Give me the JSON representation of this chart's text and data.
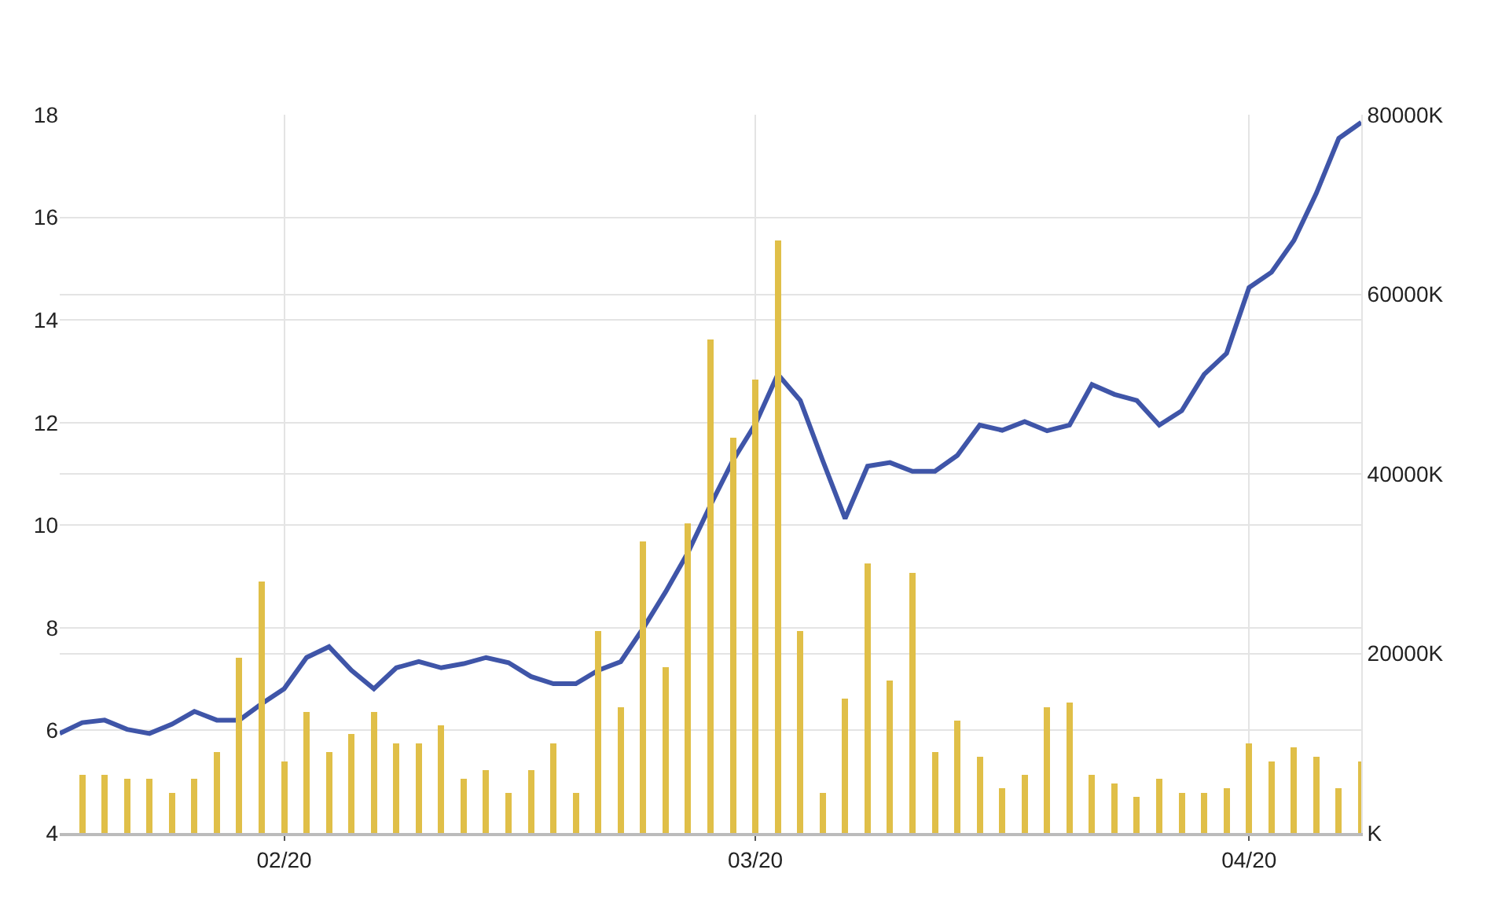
{
  "chart_data": {
    "type": "line",
    "categories": [
      null,
      null,
      null,
      null,
      null,
      null,
      null,
      null,
      null,
      null,
      "02/20",
      null,
      null,
      null,
      null,
      null,
      null,
      null,
      null,
      null,
      null,
      null,
      null,
      null,
      null,
      null,
      null,
      null,
      null,
      null,
      null,
      "03/20",
      null,
      null,
      null,
      null,
      null,
      null,
      null,
      null,
      null,
      null,
      null,
      null,
      null,
      null,
      null,
      null,
      null,
      null,
      null,
      null,
      null,
      "04/20",
      null,
      null,
      null,
      null,
      null
    ],
    "series": [
      {
        "type": "bar",
        "axis": "y2",
        "color": "#e0bf48",
        "values": [
          null,
          6500,
          6500,
          6000,
          6000,
          4500,
          6000,
          9000,
          19500,
          28000,
          8000,
          13500,
          9000,
          11000,
          13500,
          10000,
          10000,
          12000,
          6000,
          7000,
          4500,
          7000,
          10000,
          4500,
          22500,
          14000,
          32500,
          18500,
          34500,
          55000,
          44000,
          50500,
          66000,
          22500,
          4500,
          15000,
          30000,
          17000,
          29000,
          9000,
          12500,
          8500,
          5000,
          6500,
          14000,
          14500,
          6500,
          5500,
          4000,
          6000,
          4500,
          4500,
          5000,
          10000,
          8000,
          9500,
          8500,
          5000,
          8000
        ]
      },
      {
        "color": "#3f55a8",
        "values": [
          5.94,
          6.15,
          6.2,
          6.02,
          5.94,
          6.12,
          6.37,
          6.2,
          6.2,
          6.52,
          6.81,
          7.42,
          7.63,
          7.17,
          6.81,
          7.22,
          7.34,
          7.22,
          7.3,
          7.42,
          7.32,
          7.05,
          6.91,
          6.91,
          7.17,
          7.34,
          7.99,
          8.7,
          9.47,
          10.39,
          11.26,
          11.97,
          12.94,
          12.43,
          11.26,
          10.13,
          11.15,
          11.22,
          11.05,
          11.05,
          11.36,
          11.95,
          11.85,
          12.02,
          11.84,
          11.95,
          12.74,
          12.55,
          12.43,
          11.95,
          12.23,
          12.94,
          13.35,
          14.63,
          14.93,
          15.55,
          16.47,
          17.54,
          17.85
        ]
      }
    ],
    "ylim": [
      4,
      18
    ],
    "yticks": [
      4,
      6,
      8,
      10,
      12,
      14,
      16,
      18
    ],
    "y2lim": [
      0,
      80000
    ],
    "y2ticks": [
      {
        "value": 0,
        "label": "K"
      },
      {
        "value": 20000,
        "label": "20000K"
      },
      {
        "value": 40000,
        "label": "40000K"
      },
      {
        "value": 60000,
        "label": "60000K"
      },
      {
        "value": 80000,
        "label": "80000K"
      }
    ],
    "grid": true,
    "marker": "none",
    "line_style": "solid"
  }
}
